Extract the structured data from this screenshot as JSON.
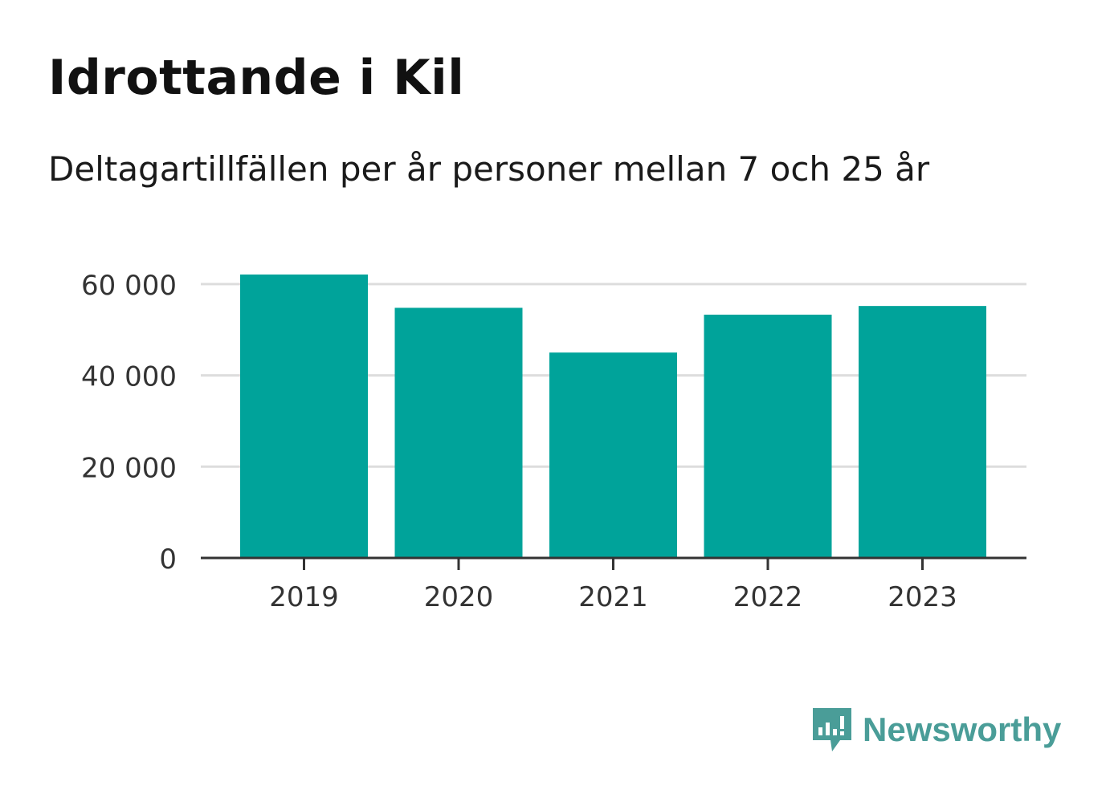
{
  "title": "Idrottande i Kil",
  "subtitle": "Deltagartillfällen per år personer mellan 7 och 25 år",
  "brand": {
    "name": "Newsworthy",
    "icon": "newsworthy-logo-icon",
    "color": "#4a9d98"
  },
  "chart_data": {
    "type": "bar",
    "categories": [
      "2019",
      "2020",
      "2021",
      "2022",
      "2023"
    ],
    "values": [
      62100,
      54800,
      45000,
      53300,
      55200
    ],
    "ylim": [
      0,
      70000
    ],
    "yticks": [
      0,
      20000,
      40000,
      60000
    ],
    "ytick_labels": [
      "0",
      "20 000",
      "40 000",
      "60 000"
    ],
    "xlabel": "",
    "ylabel": "",
    "grid": true,
    "bar_color": "#00a39a",
    "grid_color": "#dddddd",
    "axis_color": "#333333"
  }
}
